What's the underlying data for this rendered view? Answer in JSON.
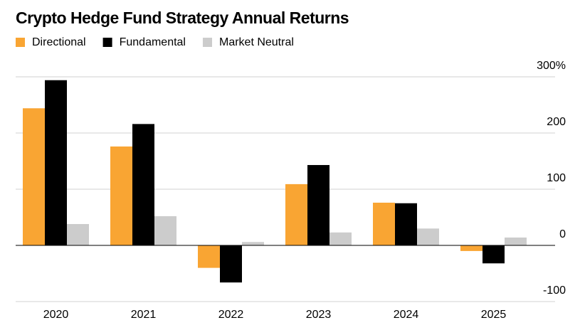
{
  "chart_data": {
    "type": "bar",
    "title": "Crypto Hedge Fund Strategy Annual Returns",
    "categories": [
      "2020",
      "2021",
      "2022",
      "2023",
      "2024",
      "2025"
    ],
    "series": [
      {
        "name": "Directional",
        "color": "#f9a533",
        "values": [
          244,
          176,
          -40,
          109,
          76,
          -10
        ]
      },
      {
        "name": "Fundamental",
        "color": "#000000",
        "values": [
          294,
          216,
          -66,
          143,
          75,
          -32
        ]
      },
      {
        "name": "Market Neutral",
        "color": "#cccccc",
        "values": [
          38,
          52,
          6,
          23,
          30,
          14
        ]
      }
    ],
    "ylim": [
      -100,
      300
    ],
    "yticks": [
      -100,
      0,
      100,
      200,
      {
        "value": 300,
        "label": "300%"
      }
    ],
    "grid": true
  }
}
